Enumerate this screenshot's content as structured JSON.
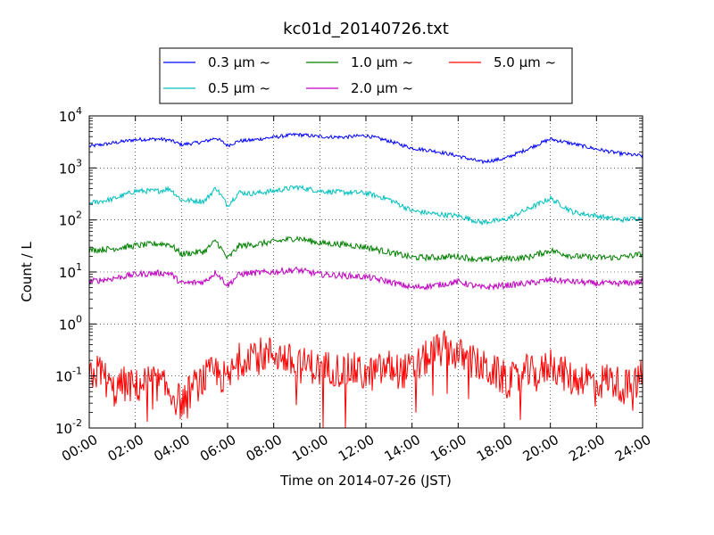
{
  "chart_data": {
    "type": "line",
    "title": "kc01d_20140726.txt",
    "xlabel": "Time on 2014-07-26 (JST)",
    "ylabel": "Count / L",
    "x_ticks": [
      "00:00",
      "02:00",
      "04:00",
      "06:00",
      "08:00",
      "10:00",
      "12:00",
      "14:00",
      "16:00",
      "18:00",
      "20:00",
      "22:00",
      "24:00"
    ],
    "x_range_hours": [
      0,
      24
    ],
    "y_scale": "log",
    "ylim": [
      0.01,
      10000
    ],
    "y_ticks": [
      {
        "value": 0.01,
        "base": "10",
        "exp": "-2"
      },
      {
        "value": 0.1,
        "base": "10",
        "exp": "-1"
      },
      {
        "value": 1,
        "base": "10",
        "exp": "0"
      },
      {
        "value": 10,
        "base": "10",
        "exp": "1"
      },
      {
        "value": 100,
        "base": "10",
        "exp": "2"
      },
      {
        "value": 1000,
        "base": "10",
        "exp": "3"
      },
      {
        "value": 10000,
        "base": "10",
        "exp": "4"
      }
    ],
    "grid": true,
    "legend_position": "top, above plot",
    "series": [
      {
        "name": "0.3 μm ~",
        "color": "#0000ff",
        "x": [
          0,
          1,
          2,
          3,
          3.5,
          4,
          5,
          5.5,
          6,
          6.5,
          7,
          8,
          9,
          10,
          11,
          12,
          13,
          14,
          15,
          16,
          17,
          18,
          19,
          20,
          21,
          22,
          23,
          24
        ],
        "values": [
          2600,
          3000,
          3500,
          3600,
          3400,
          2800,
          3200,
          3800,
          2700,
          3300,
          3400,
          3900,
          4400,
          4000,
          3900,
          4200,
          3300,
          2400,
          2100,
          1700,
          1300,
          1500,
          2300,
          3600,
          2900,
          2300,
          1900,
          1700
        ]
      },
      {
        "name": "0.5 μm ~",
        "color": "#00bfbf",
        "x": [
          0,
          1,
          2,
          3,
          3.5,
          4,
          5,
          5.5,
          6,
          6.5,
          7,
          8,
          9,
          10,
          11,
          12,
          13,
          14,
          15,
          16,
          17,
          18,
          19,
          20,
          21,
          22,
          23,
          24
        ],
        "values": [
          210,
          250,
          360,
          360,
          400,
          240,
          230,
          420,
          190,
          340,
          320,
          360,
          430,
          360,
          340,
          330,
          250,
          150,
          130,
          120,
          90,
          100,
          160,
          260,
          140,
          120,
          100,
          110
        ]
      },
      {
        "name": "1.0 μm ~",
        "color": "#008000",
        "x": [
          0,
          1,
          2,
          3,
          3.5,
          4,
          5,
          5.5,
          6,
          6.5,
          7,
          8,
          9,
          10,
          11,
          12,
          13,
          14,
          15,
          16,
          17,
          18,
          19,
          20,
          21,
          22,
          23,
          24
        ],
        "values": [
          26,
          28,
          32,
          35,
          34,
          22,
          25,
          40,
          18,
          32,
          33,
          38,
          45,
          36,
          34,
          30,
          24,
          19,
          19,
          20,
          17,
          18,
          19,
          26,
          20,
          19,
          19,
          22
        ]
      },
      {
        "name": "2.0 μm ~",
        "color": "#bf00bf",
        "x": [
          0,
          1,
          2,
          3,
          3.5,
          4,
          5,
          5.5,
          6,
          6.5,
          7,
          8,
          9,
          10,
          11,
          12,
          13,
          14,
          15,
          16,
          17,
          18,
          19,
          20,
          21,
          22,
          23,
          24
        ],
        "values": [
          6.5,
          7.5,
          9,
          9.5,
          9.5,
          6,
          6.5,
          10,
          5.5,
          9,
          9.5,
          10,
          11,
          9,
          8.5,
          8,
          6.5,
          5,
          5.5,
          6.5,
          5,
          5.5,
          6,
          7,
          6.5,
          6,
          6,
          6.5
        ]
      },
      {
        "name": "5.0 μm ~",
        "color": "#ff0000",
        "x": [
          0,
          0.5,
          1,
          1.5,
          2,
          2.5,
          3,
          3.5,
          4,
          4.5,
          5,
          5.5,
          6,
          6.5,
          7,
          7.5,
          8,
          8.5,
          9,
          9.5,
          10,
          10.5,
          11,
          11.5,
          12,
          12.5,
          13,
          13.5,
          14,
          14.5,
          15,
          15.5,
          16,
          16.5,
          17,
          17.5,
          18,
          18.5,
          19,
          19.5,
          20,
          20.5,
          21,
          21.5,
          22,
          22.5,
          23,
          23.5,
          24
        ],
        "values": [
          0.1,
          0.13,
          0.05,
          0.07,
          0.06,
          0.08,
          0.07,
          0.05,
          0.03,
          0.06,
          0.09,
          0.12,
          0.08,
          0.2,
          0.3,
          0.25,
          0.28,
          0.22,
          0.15,
          0.17,
          0.13,
          0.15,
          0.12,
          0.13,
          0.1,
          0.12,
          0.15,
          0.12,
          0.13,
          0.2,
          0.3,
          0.35,
          0.25,
          0.2,
          0.15,
          0.12,
          0.09,
          0.08,
          0.12,
          0.1,
          0.18,
          0.12,
          0.08,
          0.1,
          0.07,
          0.09,
          0.07,
          0.06,
          0.1
        ]
      }
    ]
  }
}
